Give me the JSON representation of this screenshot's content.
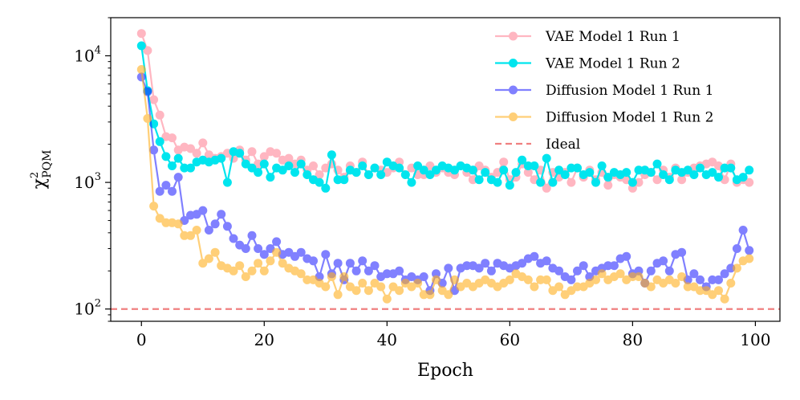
{
  "chart_data": {
    "type": "line",
    "title": "",
    "xlabel": "Epoch",
    "ylabel": "χ²_PQM",
    "ylabel_parts": {
      "base": "χ",
      "sup": "2",
      "sub": "PQM"
    },
    "yscale": "log",
    "xlim": [
      -5,
      104
    ],
    "ylim": [
      80,
      20000
    ],
    "xticks": [
      0,
      20,
      40,
      60,
      80,
      100
    ],
    "yticks": [
      {
        "value": 100,
        "base": "10",
        "exp": "2"
      },
      {
        "value": 1000,
        "base": "10",
        "exp": "3"
      },
      {
        "value": 10000,
        "base": "10",
        "exp": "4"
      }
    ],
    "legend_position": "top-right",
    "reference_line": {
      "name": "Ideal",
      "value": 100,
      "color": "#f08080",
      "style": "dashed"
    },
    "series": [
      {
        "name": "VAE Model 1 Run 1",
        "color": "#ffb6c1",
        "opacity": 1,
        "values": [
          15000,
          11000,
          4500,
          3400,
          2300,
          2250,
          1800,
          1900,
          1850,
          1700,
          2050,
          1650,
          1550,
          1600,
          1700,
          1550,
          1800,
          1500,
          1750,
          1400,
          1600,
          1750,
          1700,
          1500,
          1550,
          1400,
          1500,
          1250,
          1350,
          1150,
          1300,
          1400,
          1250,
          1100,
          1350,
          1200,
          1450,
          1150,
          1300,
          1250,
          1200,
          1300,
          1450,
          1150,
          1300,
          1150,
          1150,
          1350,
          1200,
          1300,
          1200,
          1150,
          1350,
          1200,
          1050,
          1350,
          1250,
          1100,
          1200,
          1450,
          1050,
          1100,
          1400,
          1200,
          1050,
          1250,
          900,
          1200,
          1100,
          1200,
          1000,
          1300,
          1100,
          1250,
          1050,
          1200,
          950,
          1150,
          1100,
          1050,
          900,
          1000,
          1150,
          1200,
          1050,
          1250,
          1100,
          1300,
          1050,
          1200,
          1300,
          1350,
          1400,
          1450,
          1350,
          1050,
          1400,
          1000,
          1050,
          1000
        ]
      },
      {
        "name": "VAE Model 1 Run 2",
        "color": "#00e5ee",
        "opacity": 1,
        "values": [
          12000,
          5300,
          2900,
          2100,
          1600,
          1350,
          1550,
          1300,
          1300,
          1450,
          1500,
          1450,
          1500,
          1550,
          1000,
          1750,
          1700,
          1400,
          1300,
          1200,
          1400,
          1100,
          1300,
          1250,
          1350,
          1200,
          1400,
          1150,
          1050,
          1000,
          900,
          1650,
          1050,
          1050,
          1250,
          1200,
          1350,
          1150,
          1300,
          1150,
          1450,
          1350,
          1300,
          1150,
          1000,
          1350,
          1250,
          1150,
          1250,
          1350,
          1300,
          1250,
          1350,
          1300,
          1250,
          1050,
          1200,
          1050,
          1000,
          1250,
          950,
          1200,
          1500,
          1350,
          1350,
          1000,
          1550,
          1000,
          1250,
          1150,
          1300,
          1300,
          1150,
          1200,
          1000,
          1350,
          1100,
          1200,
          1150,
          1200,
          1000,
          1250,
          1250,
          1200,
          1400,
          1150,
          1050,
          1250,
          1200,
          1250,
          1150,
          1300,
          1150,
          1200,
          1100,
          1300,
          1300,
          1050,
          1100,
          1250
        ]
      },
      {
        "name": "Diffusion Model 1 Run 1",
        "color": "#1a1aff",
        "opacity": 0.55,
        "values": [
          6800,
          5200,
          1800,
          850,
          950,
          850,
          1100,
          500,
          550,
          560,
          600,
          420,
          470,
          560,
          450,
          360,
          320,
          300,
          380,
          300,
          270,
          300,
          340,
          270,
          280,
          260,
          280,
          250,
          240,
          180,
          270,
          190,
          230,
          170,
          230,
          200,
          240,
          200,
          220,
          180,
          190,
          190,
          200,
          170,
          180,
          170,
          180,
          140,
          190,
          160,
          210,
          140,
          210,
          220,
          220,
          210,
          230,
          200,
          230,
          220,
          210,
          220,
          230,
          250,
          260,
          230,
          240,
          210,
          200,
          180,
          170,
          200,
          220,
          180,
          200,
          210,
          220,
          220,
          250,
          260,
          190,
          200,
          160,
          200,
          230,
          240,
          200,
          270,
          280,
          170,
          190,
          170,
          150,
          170,
          170,
          190,
          210,
          300,
          420,
          290
        ]
      },
      {
        "name": "Diffusion Model 1 Run 2",
        "color": "#ffb01f",
        "opacity": 0.6,
        "values": [
          7800,
          3200,
          650,
          520,
          480,
          480,
          470,
          380,
          380,
          420,
          230,
          250,
          280,
          220,
          210,
          200,
          220,
          180,
          200,
          230,
          200,
          240,
          280,
          230,
          210,
          200,
          190,
          170,
          170,
          160,
          150,
          180,
          130,
          180,
          150,
          140,
          160,
          140,
          160,
          150,
          120,
          150,
          140,
          160,
          150,
          160,
          130,
          130,
          170,
          140,
          130,
          170,
          150,
          160,
          150,
          160,
          170,
          160,
          150,
          160,
          170,
          190,
          180,
          170,
          150,
          170,
          170,
          140,
          150,
          130,
          140,
          150,
          150,
          160,
          170,
          190,
          170,
          180,
          190,
          170,
          180,
          180,
          160,
          150,
          170,
          160,
          170,
          160,
          180,
          150,
          150,
          140,
          140,
          130,
          140,
          120,
          160,
          210,
          240,
          250
        ]
      }
    ]
  }
}
